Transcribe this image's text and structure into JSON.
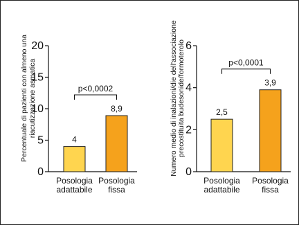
{
  "chart_data": [
    {
      "type": "bar",
      "categories": [
        "Posologia\nadattabile",
        "Posologia\nfissa"
      ],
      "values": [
        4,
        8.9
      ],
      "value_labels": [
        "4",
        "8,9"
      ],
      "ylabel": "Percentuale di pazienti con almeno una riacutizzazione asmatica",
      "ylabel_lines": [
        "Percentuale di pazienti con almeno una",
        "riacutizzazione asmatica"
      ],
      "yticks": [
        0,
        5,
        10,
        15,
        20
      ],
      "ylim": [
        0,
        20
      ],
      "annotation": "p<0,0002",
      "colors": [
        "#FFD54F",
        "#F5A21C"
      ]
    },
    {
      "type": "bar",
      "categories": [
        "Posologia\nadattabile",
        "Posologia\nfissa"
      ],
      "values": [
        2.5,
        3.9
      ],
      "value_labels": [
        "2,5",
        "3,9"
      ],
      "ylabel": "Numero medio di inalazioni/die dell'associazione precostituita budesonide/formoterolo",
      "ylabel_lines": [
        "Numero medio di inalazioni/die dell'associazione",
        "precostituita budesonide/formoterolo"
      ],
      "yticks": [
        0,
        2,
        4,
        6
      ],
      "ylim": [
        0,
        6
      ],
      "annotation": "p<0,0001",
      "colors": [
        "#FFD54F",
        "#F5A21C"
      ]
    }
  ]
}
